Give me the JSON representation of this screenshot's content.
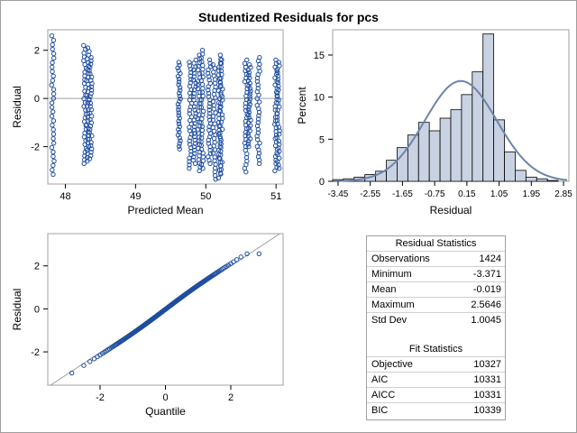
{
  "title": "Studentized Residuals for pcs",
  "colors": {
    "marker": "#1f4e9f",
    "hist_fill": "#c9d2e2",
    "curve": "#6c84aa",
    "refline": "#9aa0a6"
  },
  "chart_data": [
    {
      "type": "scatter",
      "xlabel": "Predicted Mean",
      "ylabel": "Residual",
      "xlim": [
        47.75,
        51.1
      ],
      "ylim": [
        -3.55,
        2.85
      ],
      "xticks": [
        48,
        49,
        50,
        51
      ],
      "yticks": [
        -2,
        0,
        2
      ],
      "reference_line_y": 0,
      "columns": [
        {
          "x": 47.82,
          "ymin": -3.15,
          "ymax": 2.6
        },
        {
          "x": 48.28,
          "ymin": -2.7,
          "ymax": 2.2
        },
        {
          "x": 48.32,
          "ymin": -2.6,
          "ymax": 2.1
        },
        {
          "x": 48.36,
          "ymin": -2.5,
          "ymax": 1.7
        },
        {
          "x": 49.62,
          "ymin": -2.1,
          "ymax": 1.5
        },
        {
          "x": 49.78,
          "ymin": -2.9,
          "ymax": 1.5
        },
        {
          "x": 49.84,
          "ymin": -2.7,
          "ymax": 1.6
        },
        {
          "x": 49.9,
          "ymin": -3.0,
          "ymax": 1.8
        },
        {
          "x": 49.95,
          "ymin": -2.9,
          "ymax": 2.0
        },
        {
          "x": 50.05,
          "ymin": -2.7,
          "ymax": 1.6
        },
        {
          "x": 50.12,
          "ymin": -3.35,
          "ymax": 1.4
        },
        {
          "x": 50.2,
          "ymin": -3.3,
          "ymax": 1.8
        },
        {
          "x": 50.22,
          "ymin": -3.1,
          "ymax": 1.6
        },
        {
          "x": 50.57,
          "ymin": -3.05,
          "ymax": 1.6
        },
        {
          "x": 50.62,
          "ymin": -2.0,
          "ymax": 1.4
        },
        {
          "x": 50.75,
          "ymin": -2.7,
          "ymax": 1.7
        },
        {
          "x": 51.0,
          "ymin": -3.0,
          "ymax": 1.6
        },
        {
          "x": 51.03,
          "ymin": -2.9,
          "ymax": 1.5
        }
      ]
    },
    {
      "type": "bar",
      "xlabel": "Residual",
      "ylabel": "Percent",
      "xlim": [
        -3.6,
        3.0
      ],
      "ylim": [
        0,
        18
      ],
      "xticks": [
        -3.45,
        -2.55,
        -1.65,
        -0.75,
        0.15,
        1.05,
        1.95,
        2.85
      ],
      "yticks": [
        0,
        5,
        10,
        15
      ],
      "bin_width": 0.3,
      "bin_start": -3.6,
      "values": [
        0.2,
        0.3,
        0.5,
        0.8,
        1.2,
        2.5,
        4.0,
        5.5,
        7.0,
        6.0,
        7.5,
        8.5,
        10.3,
        13.0,
        17.5,
        7.3,
        3.5,
        1.3,
        0.5,
        0.3,
        0.1
      ],
      "density_curve": {
        "mean": -0.019,
        "std": 1.0045
      }
    },
    {
      "type": "scatter",
      "xlabel": "Quantile",
      "ylabel": "Residual",
      "xlim": [
        -3.6,
        3.6
      ],
      "ylim": [
        -3.55,
        3.5
      ],
      "xticks": [
        -2,
        0,
        2
      ],
      "yticks": [
        -2,
        0,
        2
      ],
      "reference_line": {
        "intercept": -0.019,
        "slope": 1.0045
      },
      "sample_size": 1424,
      "y_range": [
        -3.371,
        2.5646
      ]
    }
  ],
  "residual_statistics": {
    "title": "Residual Statistics",
    "rows": [
      {
        "label": "Observations",
        "value": "1424"
      },
      {
        "label": "Minimum",
        "value": "-3.371"
      },
      {
        "label": "Mean",
        "value": "-0.019"
      },
      {
        "label": "Maximum",
        "value": "2.5646"
      },
      {
        "label": "Std Dev",
        "value": "1.0045"
      }
    ]
  },
  "fit_statistics": {
    "title": "Fit Statistics",
    "rows": [
      {
        "label": "Objective",
        "value": "10327"
      },
      {
        "label": "AIC",
        "value": "10331"
      },
      {
        "label": "AICC",
        "value": "10331"
      },
      {
        "label": "BIC",
        "value": "10339"
      }
    ]
  }
}
